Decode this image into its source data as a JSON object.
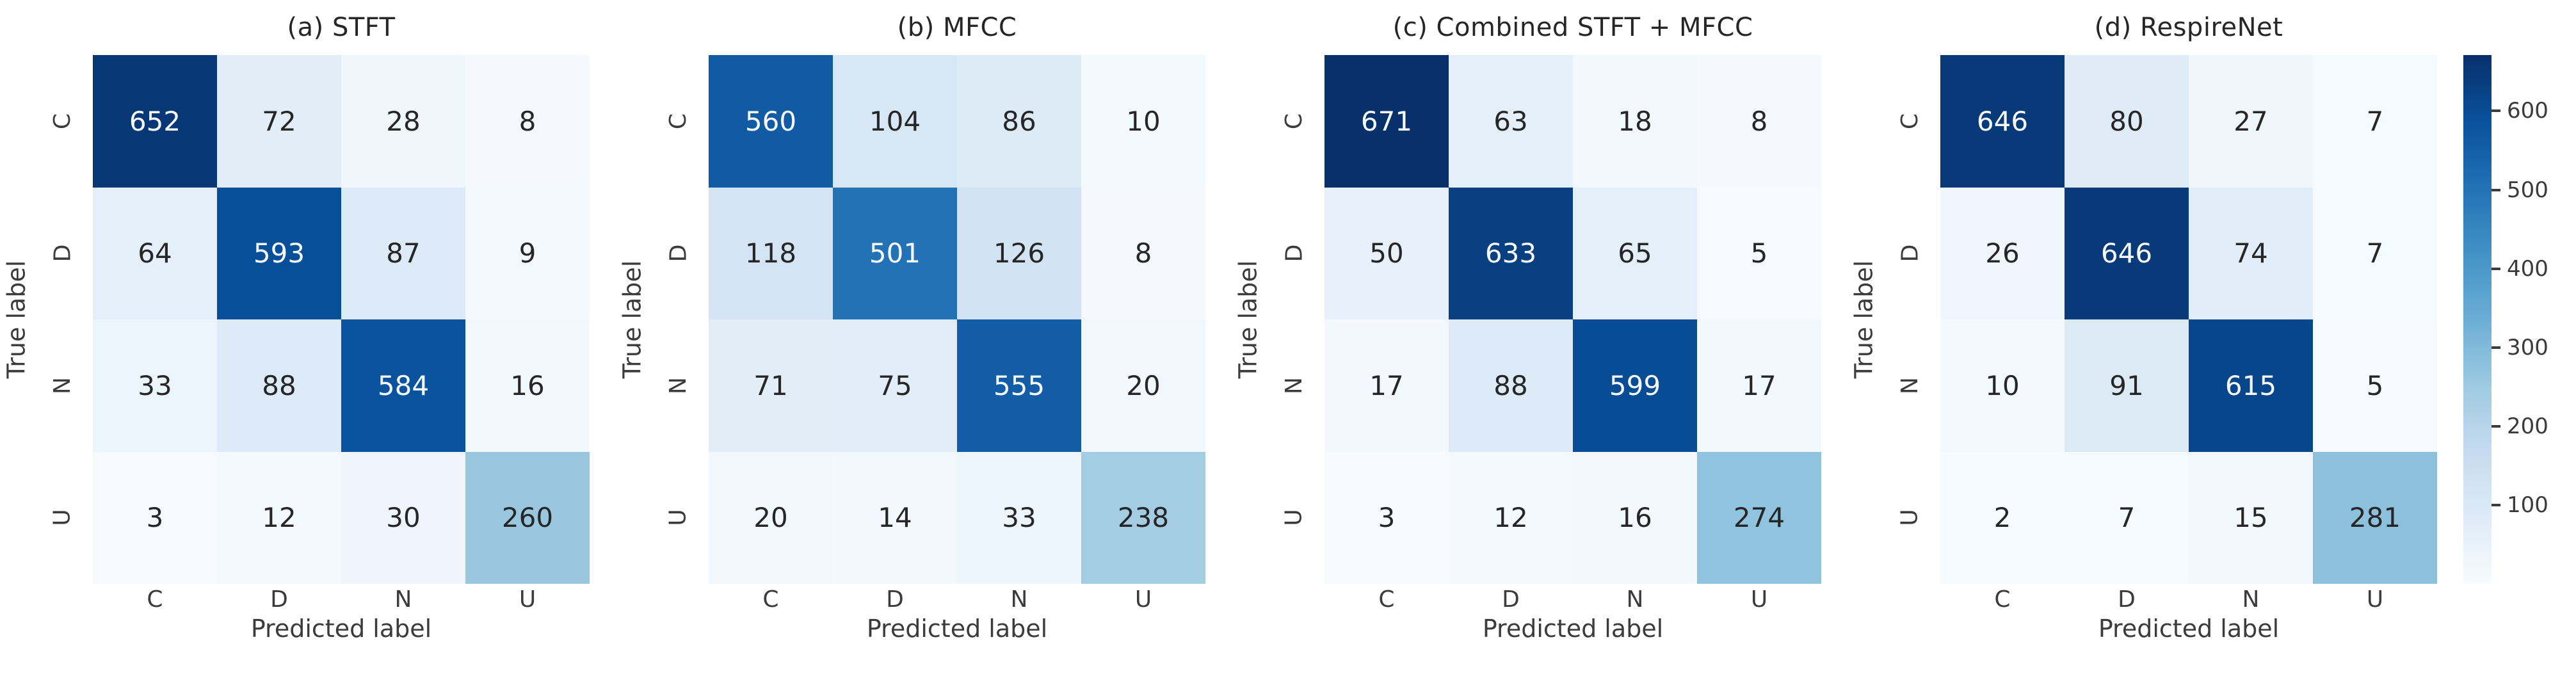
{
  "figure": {
    "background": "#ffffff",
    "description": "Four confusion-matrix heatmaps sharing one Blues colorbar"
  },
  "axes": {
    "x_label": "Predicted label",
    "y_label": "True label",
    "x_tick_labels": [
      "C",
      "D",
      "N",
      "U"
    ],
    "y_tick_labels": [
      "C",
      "D",
      "N",
      "U"
    ]
  },
  "colorbar": {
    "ticks": [
      100,
      200,
      300,
      400,
      500,
      600
    ],
    "vmin": 0,
    "vmax": 671,
    "colormap": "Blues",
    "stops": [
      "#f7fbff",
      "#deebf7",
      "#c6dbef",
      "#9ecae1",
      "#6baed6",
      "#4292c6",
      "#2171b5",
      "#08519c",
      "#08306b"
    ]
  },
  "annotation_colors": {
    "on_dark": "#f7fbff",
    "on_light": "#262626"
  },
  "chart_data": [
    {
      "type": "heatmap",
      "title": "(a) STFT",
      "x_categories": [
        "C",
        "D",
        "N",
        "U"
      ],
      "y_categories": [
        "C",
        "D",
        "N",
        "U"
      ],
      "values": [
        [
          652,
          72,
          28,
          8
        ],
        [
          64,
          593,
          87,
          9
        ],
        [
          33,
          88,
          584,
          16
        ],
        [
          3,
          12,
          30,
          260
        ]
      ]
    },
    {
      "type": "heatmap",
      "title": "(b) MFCC",
      "x_categories": [
        "C",
        "D",
        "N",
        "U"
      ],
      "y_categories": [
        "C",
        "D",
        "N",
        "U"
      ],
      "values": [
        [
          560,
          104,
          86,
          10
        ],
        [
          118,
          501,
          126,
          8
        ],
        [
          71,
          75,
          555,
          20
        ],
        [
          20,
          14,
          33,
          238
        ]
      ]
    },
    {
      "type": "heatmap",
      "title": "(c) Combined STFT + MFCC",
      "x_categories": [
        "C",
        "D",
        "N",
        "U"
      ],
      "y_categories": [
        "C",
        "D",
        "N",
        "U"
      ],
      "values": [
        [
          671,
          63,
          18,
          8
        ],
        [
          50,
          633,
          65,
          5
        ],
        [
          17,
          88,
          599,
          17
        ],
        [
          3,
          12,
          16,
          274
        ]
      ]
    },
    {
      "type": "heatmap",
      "title": "(d) RespireNet",
      "x_categories": [
        "C",
        "D",
        "N",
        "U"
      ],
      "y_categories": [
        "C",
        "D",
        "N",
        "U"
      ],
      "values": [
        [
          646,
          80,
          27,
          7
        ],
        [
          26,
          646,
          74,
          7
        ],
        [
          10,
          91,
          615,
          5
        ],
        [
          2,
          7,
          15,
          281
        ]
      ]
    }
  ]
}
